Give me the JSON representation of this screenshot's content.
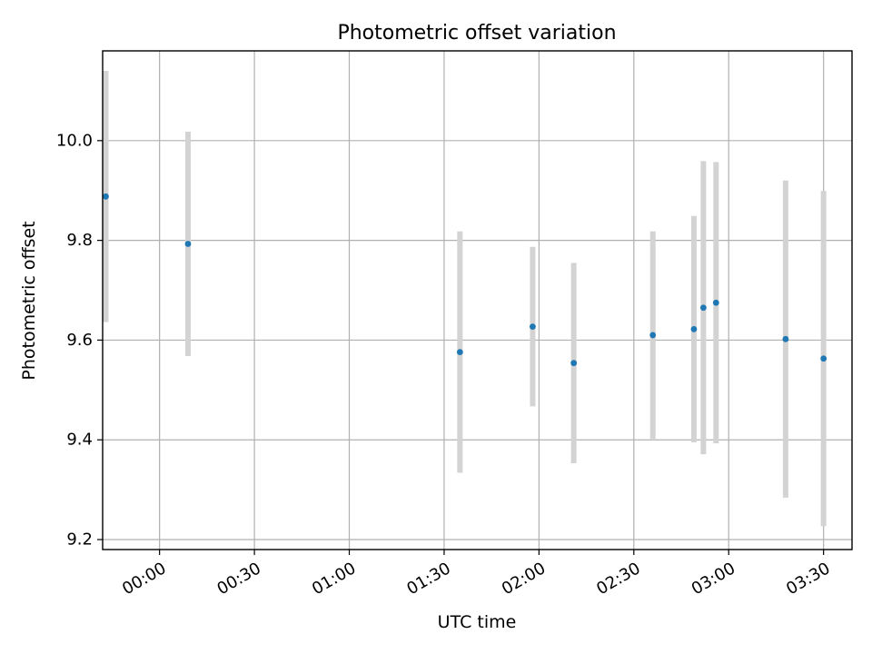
{
  "chart_data": {
    "type": "scatter",
    "title": "Photometric offset variation",
    "xlabel": "UTC time",
    "ylabel": "Photometric offset",
    "xlim": [
      "-00:18",
      "03:39"
    ],
    "ylim": [
      9.18,
      10.18
    ],
    "xticks": [
      "00:00",
      "00:30",
      "01:00",
      "01:30",
      "02:00",
      "02:30",
      "03:00",
      "03:30"
    ],
    "yticks": [
      9.2,
      9.4,
      9.6,
      9.8,
      10.0
    ],
    "ytick_labels": [
      "9.2",
      "9.4",
      "9.6",
      "9.8",
      "10.0"
    ],
    "grid": true,
    "points": [
      {
        "x": "-00:17",
        "y": 9.888,
        "err": 0.252
      },
      {
        "x": "00:09",
        "y": 9.793,
        "err": 0.225
      },
      {
        "x": "01:35",
        "y": 9.576,
        "err": 0.242
      },
      {
        "x": "01:58",
        "y": 9.627,
        "err": 0.16
      },
      {
        "x": "02:11",
        "y": 9.554,
        "err": 0.201
      },
      {
        "x": "02:36",
        "y": 9.61,
        "err": 0.208
      },
      {
        "x": "02:49",
        "y": 9.622,
        "err": 0.227
      },
      {
        "x": "02:52",
        "y": 9.665,
        "err": 0.294
      },
      {
        "x": "02:56",
        "y": 9.675,
        "err": 0.282
      },
      {
        "x": "03:18",
        "y": 9.602,
        "err": 0.318
      },
      {
        "x": "03:30",
        "y": 9.563,
        "err": 0.336
      }
    ],
    "colors": {
      "marker": "#1f77b4",
      "errorbar": "#d3d3d3",
      "grid": "#b0b0b0"
    }
  }
}
